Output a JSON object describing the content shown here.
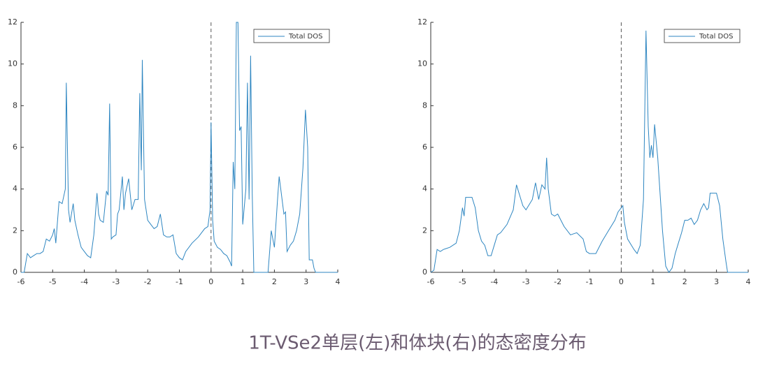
{
  "chart_data": [
    {
      "type": "line",
      "legend": "upper right",
      "color": "#2e86c1",
      "vline": 0,
      "xlim": [
        -6,
        4
      ],
      "ylim": [
        0,
        12
      ],
      "xticks": [
        -6,
        -5,
        -4,
        -3,
        -2,
        -1,
        0,
        1,
        2,
        3,
        4
      ],
      "yticks": [
        0,
        2,
        4,
        6,
        8,
        10,
        12
      ],
      "series": [
        {
          "name": "Total DOS",
          "color": "#2e86c1",
          "x": [
            -6,
            -5.9,
            -5.8,
            -5.7,
            -5.6,
            -5.5,
            -5.4,
            -5.3,
            -5.2,
            -5.1,
            -5.0,
            -4.95,
            -4.9,
            -4.8,
            -4.7,
            -4.6,
            -4.57,
            -4.5,
            -4.45,
            -4.35,
            -4.3,
            -4.2,
            -4.1,
            -4.0,
            -3.9,
            -3.8,
            -3.7,
            -3.6,
            -3.55,
            -3.5,
            -3.4,
            -3.3,
            -3.25,
            -3.2,
            -3.15,
            -3.1,
            -3.0,
            -2.95,
            -2.9,
            -2.8,
            -2.75,
            -2.7,
            -2.6,
            -2.5,
            -2.4,
            -2.3,
            -2.25,
            -2.2,
            -2.17,
            -2.1,
            -2.0,
            -1.9,
            -1.8,
            -1.7,
            -1.6,
            -1.5,
            -1.4,
            -1.3,
            -1.2,
            -1.1,
            -1.0,
            -0.9,
            -0.8,
            -0.6,
            -0.4,
            -0.2,
            -0.1,
            -0.03,
            0,
            0.05,
            0.1,
            0.2,
            0.3,
            0.4,
            0.5,
            0.6,
            0.65,
            0.7,
            0.75,
            0.8,
            0.85,
            0.9,
            0.95,
            1.0,
            1.1,
            1.15,
            1.2,
            1.25,
            1.3,
            1.35,
            1.8,
            1.9,
            2.0,
            2.1,
            2.15,
            2.2,
            2.3,
            2.35,
            2.4,
            2.5,
            2.6,
            2.7,
            2.8,
            2.9,
            2.98,
            3.05,
            3.1,
            3.2,
            3.25,
            3.3,
            4
          ],
          "values": [
            0,
            0,
            0.9,
            0.7,
            0.8,
            0.9,
            0.9,
            1.0,
            1.6,
            1.5,
            1.8,
            2.1,
            1.4,
            3.4,
            3.3,
            4.0,
            9.1,
            3.0,
            2.4,
            3.3,
            2.5,
            1.8,
            1.2,
            1.0,
            0.8,
            0.7,
            1.8,
            3.8,
            2.8,
            2.5,
            2.4,
            3.9,
            3.7,
            8.1,
            1.6,
            1.7,
            1.8,
            2.8,
            3.0,
            4.6,
            3.0,
            3.8,
            4.5,
            3.0,
            3.5,
            3.5,
            8.6,
            4.9,
            10.2,
            3.5,
            2.5,
            2.3,
            2.1,
            2.2,
            2.8,
            1.8,
            1.7,
            1.7,
            1.8,
            0.9,
            0.7,
            0.6,
            1.0,
            1.4,
            1.7,
            2.1,
            2.2,
            3.0,
            7.2,
            2.5,
            1.5,
            1.2,
            1.1,
            0.9,
            0.8,
            0.5,
            0.3,
            5.3,
            4.0,
            12,
            12,
            6.8,
            7.0,
            2.3,
            4.0,
            9.1,
            3.5,
            10.4,
            3.8,
            0,
            0,
            2.0,
            1.2,
            3.5,
            4.6,
            4.0,
            2.8,
            2.9,
            1.0,
            1.3,
            1.5,
            2.0,
            2.8,
            5.0,
            7.8,
            6.0,
            0.6,
            0.6,
            0.2,
            0,
            0
          ]
        }
      ]
    },
    {
      "type": "line",
      "legend": "upper right",
      "color": "#2e86c1",
      "vline": 0,
      "xlim": [
        -6,
        4
      ],
      "ylim": [
        0,
        12
      ],
      "xticks": [
        -6,
        -5,
        -4,
        -3,
        -2,
        -1,
        0,
        1,
        2,
        3,
        4
      ],
      "yticks": [
        0,
        2,
        4,
        6,
        8,
        10,
        12
      ],
      "series": [
        {
          "name": "Total DOS",
          "color": "#2e86c1",
          "x": [
            -6,
            -5.9,
            -5.8,
            -5.7,
            -5.6,
            -5.4,
            -5.2,
            -5.1,
            -5.0,
            -4.95,
            -4.9,
            -4.7,
            -4.6,
            -4.5,
            -4.4,
            -4.3,
            -4.2,
            -4.1,
            -4.0,
            -3.9,
            -3.8,
            -3.6,
            -3.4,
            -3.3,
            -3.2,
            -3.1,
            -3.0,
            -2.8,
            -2.7,
            -2.6,
            -2.5,
            -2.4,
            -2.35,
            -2.3,
            -2.2,
            -2.1,
            -2.0,
            -1.9,
            -1.8,
            -1.6,
            -1.4,
            -1.2,
            -1.1,
            -1.0,
            -0.8,
            -0.6,
            -0.4,
            -0.2,
            -0.1,
            0.05,
            0.1,
            0.2,
            0.4,
            0.5,
            0.6,
            0.7,
            0.78,
            0.85,
            0.9,
            0.95,
            1.0,
            1.05,
            1.15,
            1.3,
            1.4,
            1.5,
            1.6,
            1.7,
            1.8,
            1.9,
            2.0,
            2.1,
            2.2,
            2.3,
            2.4,
            2.5,
            2.6,
            2.7,
            2.75,
            2.8,
            3.0,
            3.1,
            3.2,
            3.3,
            3.35,
            4
          ],
          "values": [
            0,
            0.1,
            1.1,
            1.0,
            1.1,
            1.2,
            1.4,
            2.0,
            3.1,
            2.7,
            3.6,
            3.6,
            3.1,
            2.0,
            1.5,
            1.3,
            0.8,
            0.8,
            1.3,
            1.8,
            1.9,
            2.3,
            3.0,
            4.2,
            3.7,
            3.2,
            3.0,
            3.5,
            4.3,
            3.5,
            4.2,
            4.0,
            5.5,
            4.0,
            2.8,
            2.7,
            2.8,
            2.5,
            2.2,
            1.8,
            1.9,
            1.6,
            1.0,
            0.9,
            0.9,
            1.5,
            2.0,
            2.5,
            2.9,
            3.2,
            2.4,
            1.6,
            1.1,
            0.9,
            1.3,
            3.5,
            11.6,
            7.0,
            5.5,
            6.1,
            5.5,
            7.1,
            5.5,
            2.0,
            0.3,
            0,
            0.2,
            0.9,
            1.4,
            1.9,
            2.5,
            2.5,
            2.6,
            2.3,
            2.5,
            3.0,
            3.3,
            3.0,
            3.1,
            3.8,
            3.8,
            3.2,
            1.6,
            0.5,
            0,
            0
          ]
        }
      ]
    }
  ],
  "caption": "1T-VSe2单层(左)和体块(右)的态密度分布"
}
